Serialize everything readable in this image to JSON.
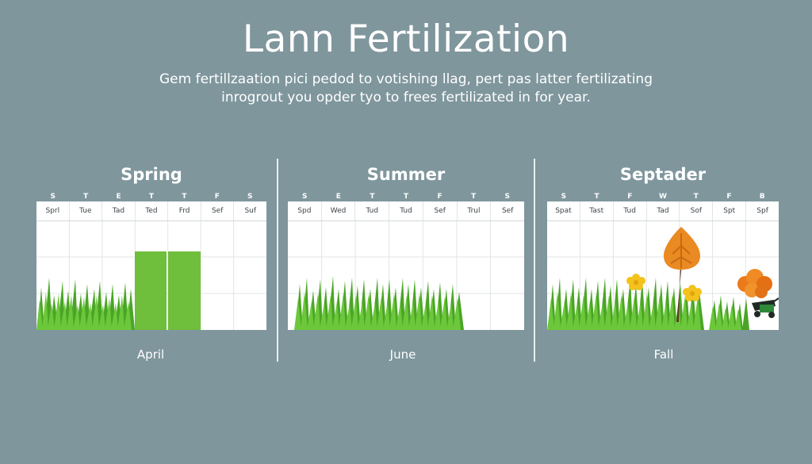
{
  "header": {
    "title": "Lann Fertilization",
    "subtitle_line1": "Gem fertillzaation pici pedod to votishing llag, pert pas latter fertilizating",
    "subtitle_line2": "inrogrout you opder tyo to frees fertilizated in for year."
  },
  "panels": [
    {
      "title": "Spring",
      "letters": [
        "S",
        "T",
        "E",
        "T",
        "T",
        "F",
        "S"
      ],
      "days": [
        "Sprl",
        "Tue",
        "Tad",
        "Ted",
        "Frd",
        "Sef",
        "Suf"
      ],
      "month": "April",
      "highlight_color": "#6fbe3c"
    },
    {
      "title": "Summer",
      "letters": [
        "S",
        "E",
        "T",
        "T",
        "F",
        "T",
        "S"
      ],
      "days": [
        "Spd",
        "Wed",
        "Tud",
        "Tud",
        "Sef",
        "Trul",
        "Sef"
      ],
      "month": "June"
    },
    {
      "title": "Septader",
      "letters": [
        "S",
        "T",
        "F",
        "W",
        "T",
        "F",
        "B"
      ],
      "days": [
        "Spat",
        "Tast",
        "Tud",
        "Tad",
        "Sof",
        "Spt",
        "Spf"
      ],
      "month": "Fall"
    }
  ],
  "colors": {
    "background": "#7f969d",
    "grass": "#5cb82e",
    "grass_dark": "#3f9a1f",
    "leaf_orange": "#e98a22",
    "flower_yellow": "#f3c21c"
  },
  "icons": [
    "tree-icon",
    "flower-icon",
    "bush-icon",
    "spreader-icon"
  ]
}
